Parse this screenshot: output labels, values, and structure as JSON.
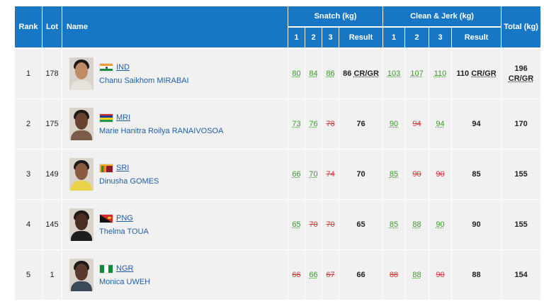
{
  "header": {
    "rank": "Rank",
    "lot": "Lot",
    "name": "Name",
    "snatch": "Snatch (kg)",
    "cj": "Clean & Jerk (kg)",
    "total": "Total (kg)",
    "att1": "1",
    "att2": "2",
    "att3": "3",
    "result": "Result"
  },
  "rows": [
    {
      "rank": "1",
      "lot": "178",
      "country": "IND",
      "name": "Chanu Saikhom MIRABAI",
      "snatch": [
        {
          "v": "80",
          "ok": true
        },
        {
          "v": "84",
          "ok": true
        },
        {
          "v": "86",
          "ok": true
        }
      ],
      "snatch_result": "86",
      "snatch_rec": "CR/GR",
      "cj": [
        {
          "v": "103",
          "ok": true
        },
        {
          "v": "107",
          "ok": true
        },
        {
          "v": "110",
          "ok": true
        }
      ],
      "cj_result": "110",
      "cj_rec": "CR/GR",
      "total": "196",
      "total_rec": "CR/GR"
    },
    {
      "rank": "2",
      "lot": "175",
      "country": "MRI",
      "name": "Marie Hanitra Roilya RANAIVOSOA",
      "snatch": [
        {
          "v": "73",
          "ok": true
        },
        {
          "v": "76",
          "ok": true
        },
        {
          "v": "78",
          "ok": false
        }
      ],
      "snatch_result": "76",
      "snatch_rec": "",
      "cj": [
        {
          "v": "90",
          "ok": true
        },
        {
          "v": "94",
          "ok": false
        },
        {
          "v": "94",
          "ok": true
        }
      ],
      "cj_result": "94",
      "cj_rec": "",
      "total": "170",
      "total_rec": ""
    },
    {
      "rank": "3",
      "lot": "149",
      "country": "SRI",
      "name": "Dinusha GOMES",
      "snatch": [
        {
          "v": "66",
          "ok": true
        },
        {
          "v": "70",
          "ok": true
        },
        {
          "v": "74",
          "ok": false
        }
      ],
      "snatch_result": "70",
      "snatch_rec": "",
      "cj": [
        {
          "v": "85",
          "ok": true
        },
        {
          "v": "90",
          "ok": false
        },
        {
          "v": "90",
          "ok": false
        }
      ],
      "cj_result": "85",
      "cj_rec": "",
      "total": "155",
      "total_rec": ""
    },
    {
      "rank": "4",
      "lot": "145",
      "country": "PNG",
      "name": "Thelma TOUA",
      "snatch": [
        {
          "v": "65",
          "ok": true
        },
        {
          "v": "70",
          "ok": false
        },
        {
          "v": "70",
          "ok": false
        }
      ],
      "snatch_result": "65",
      "snatch_rec": "",
      "cj": [
        {
          "v": "85",
          "ok": true
        },
        {
          "v": "88",
          "ok": true
        },
        {
          "v": "90",
          "ok": true
        }
      ],
      "cj_result": "90",
      "cj_rec": "",
      "total": "155",
      "total_rec": ""
    },
    {
      "rank": "5",
      "lot": "1",
      "country": "NGR",
      "name": "Monica UWEH",
      "snatch": [
        {
          "v": "66",
          "ok": false
        },
        {
          "v": "66",
          "ok": true
        },
        {
          "v": "67",
          "ok": false
        }
      ],
      "snatch_result": "66",
      "snatch_rec": "",
      "cj": [
        {
          "v": "88",
          "ok": false
        },
        {
          "v": "88",
          "ok": true
        },
        {
          "v": "90",
          "ok": false
        }
      ],
      "cj_result": "88",
      "cj_rec": "",
      "total": "154",
      "total_rec": ""
    }
  ],
  "colors": {
    "header_bg": "#1877c4",
    "row_bg": "#f1f1f1",
    "good_lift": "#3a9a2a",
    "no_lift": "#d43a3a",
    "link": "#1f5fa8"
  }
}
